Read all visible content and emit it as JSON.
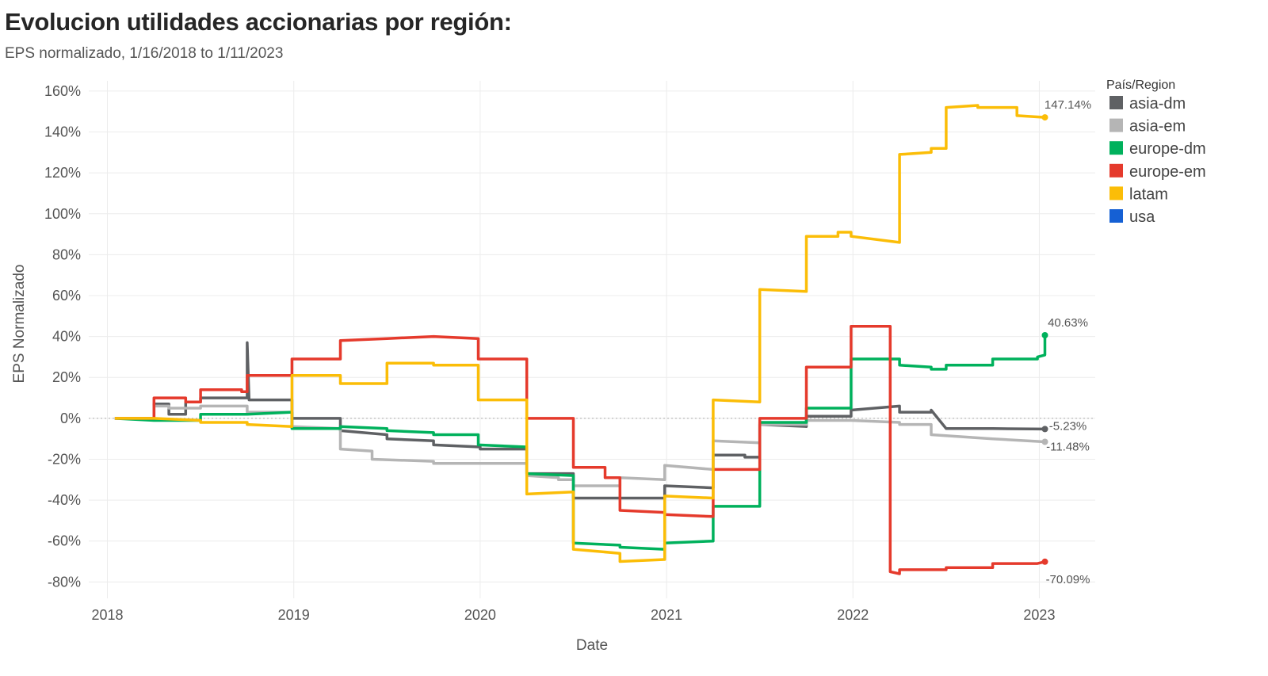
{
  "title": "Evolucion utilidades accionarias por región:",
  "subtitle": "EPS normalizado, 1/16/2018 to 1/11/2023",
  "chart_data": {
    "type": "line",
    "xlabel": "Date",
    "ylabel": "EPS Normalizado",
    "xlim": [
      2017.9,
      2023.3
    ],
    "ylim": [
      -88,
      165
    ],
    "x_ticks": [
      2018,
      2019,
      2020,
      2021,
      2022,
      2023
    ],
    "x_tick_labels": [
      "2018",
      "2019",
      "2020",
      "2021",
      "2022",
      "2023"
    ],
    "y_ticks": [
      -80,
      -60,
      -40,
      -20,
      0,
      20,
      40,
      60,
      80,
      100,
      120,
      140,
      160
    ],
    "y_tick_labels": [
      "-80%",
      "-60%",
      "-40%",
      "-20%",
      "0%",
      "20%",
      "40%",
      "60%",
      "80%",
      "100%",
      "120%",
      "140%",
      "160%"
    ],
    "grid": true,
    "zero_line": "dotted",
    "legend": {
      "title": "País/Region",
      "position": "right"
    },
    "series": [
      {
        "name": "asia-dm",
        "color": "#5f6164",
        "end_label": "-5.23%",
        "end_value": -5.23,
        "points": [
          [
            2018.04,
            0
          ],
          [
            2018.25,
            0
          ],
          [
            2018.25,
            7
          ],
          [
            2018.33,
            7
          ],
          [
            2018.33,
            2
          ],
          [
            2018.42,
            2
          ],
          [
            2018.42,
            8
          ],
          [
            2018.5,
            8
          ],
          [
            2018.5,
            10
          ],
          [
            2018.75,
            10
          ],
          [
            2018.75,
            37
          ],
          [
            2018.76,
            9
          ],
          [
            2018.99,
            9
          ],
          [
            2018.99,
            0
          ],
          [
            2019.25,
            0
          ],
          [
            2019.25,
            -6
          ],
          [
            2019.5,
            -8
          ],
          [
            2019.5,
            -10
          ],
          [
            2019.75,
            -11
          ],
          [
            2019.75,
            -13
          ],
          [
            2020.0,
            -14
          ],
          [
            2020.0,
            -15
          ],
          [
            2020.25,
            -15
          ],
          [
            2020.25,
            -27
          ],
          [
            2020.5,
            -27
          ],
          [
            2020.5,
            -39
          ],
          [
            2020.75,
            -39
          ],
          [
            2020.75,
            -39
          ],
          [
            2020.99,
            -39
          ],
          [
            2020.99,
            -33
          ],
          [
            2021.25,
            -34
          ],
          [
            2021.25,
            -18
          ],
          [
            2021.42,
            -18
          ],
          [
            2021.42,
            -19
          ],
          [
            2021.5,
            -19
          ],
          [
            2021.5,
            -3
          ],
          [
            2021.75,
            -4
          ],
          [
            2021.75,
            1
          ],
          [
            2021.99,
            1
          ],
          [
            2021.99,
            4
          ],
          [
            2022.25,
            6
          ],
          [
            2022.25,
            3
          ],
          [
            2022.42,
            3
          ],
          [
            2022.42,
            4
          ],
          [
            2022.5,
            -5
          ],
          [
            2022.75,
            -5
          ],
          [
            2023.03,
            -5.23
          ]
        ]
      },
      {
        "name": "asia-em",
        "color": "#b5b5b5",
        "end_label": "-11.48%",
        "end_value": -11.48,
        "points": [
          [
            2018.04,
            0
          ],
          [
            2018.25,
            0
          ],
          [
            2018.25,
            6
          ],
          [
            2018.33,
            6
          ],
          [
            2018.33,
            5
          ],
          [
            2018.5,
            5
          ],
          [
            2018.5,
            6
          ],
          [
            2018.75,
            6
          ],
          [
            2018.75,
            3
          ],
          [
            2018.99,
            3
          ],
          [
            2018.99,
            -4
          ],
          [
            2019.25,
            -5
          ],
          [
            2019.25,
            -15
          ],
          [
            2019.42,
            -16
          ],
          [
            2019.42,
            -20
          ],
          [
            2019.75,
            -21
          ],
          [
            2019.75,
            -22
          ],
          [
            2020.25,
            -22
          ],
          [
            2020.25,
            -28
          ],
          [
            2020.42,
            -29
          ],
          [
            2020.42,
            -30
          ],
          [
            2020.5,
            -30
          ],
          [
            2020.5,
            -33
          ],
          [
            2020.75,
            -33
          ],
          [
            2020.75,
            -29
          ],
          [
            2020.99,
            -30
          ],
          [
            2020.99,
            -23
          ],
          [
            2021.25,
            -25
          ],
          [
            2021.25,
            -11
          ],
          [
            2021.5,
            -12
          ],
          [
            2021.5,
            -3
          ],
          [
            2021.75,
            -3
          ],
          [
            2021.75,
            -1
          ],
          [
            2021.99,
            -1
          ],
          [
            2022.25,
            -2
          ],
          [
            2022.25,
            -3
          ],
          [
            2022.42,
            -3
          ],
          [
            2022.42,
            -8
          ],
          [
            2022.75,
            -10
          ],
          [
            2023.03,
            -11.48
          ]
        ]
      },
      {
        "name": "europe-dm",
        "color": "#00b15c",
        "end_label": "40.63%",
        "end_value": 40.63,
        "points": [
          [
            2018.04,
            0
          ],
          [
            2018.25,
            -1
          ],
          [
            2018.5,
            -1
          ],
          [
            2018.5,
            2
          ],
          [
            2018.75,
            2
          ],
          [
            2018.75,
            2
          ],
          [
            2018.99,
            3
          ],
          [
            2018.99,
            -5
          ],
          [
            2019.25,
            -5
          ],
          [
            2019.25,
            -4
          ],
          [
            2019.5,
            -5
          ],
          [
            2019.5,
            -6
          ],
          [
            2019.75,
            -7
          ],
          [
            2019.75,
            -8
          ],
          [
            2019.99,
            -8
          ],
          [
            2019.99,
            -13
          ],
          [
            2020.25,
            -14
          ],
          [
            2020.25,
            -27
          ],
          [
            2020.5,
            -28
          ],
          [
            2020.5,
            -61
          ],
          [
            2020.75,
            -62
          ],
          [
            2020.75,
            -63
          ],
          [
            2020.99,
            -64
          ],
          [
            2020.99,
            -61
          ],
          [
            2021.25,
            -60
          ],
          [
            2021.25,
            -43
          ],
          [
            2021.5,
            -43
          ],
          [
            2021.5,
            -2
          ],
          [
            2021.75,
            -2
          ],
          [
            2021.75,
            5
          ],
          [
            2021.99,
            5
          ],
          [
            2021.99,
            29
          ],
          [
            2022.25,
            29
          ],
          [
            2022.25,
            26
          ],
          [
            2022.42,
            25
          ],
          [
            2022.42,
            24
          ],
          [
            2022.5,
            24
          ],
          [
            2022.5,
            26
          ],
          [
            2022.75,
            26
          ],
          [
            2022.75,
            29
          ],
          [
            2022.99,
            29
          ],
          [
            2022.99,
            30
          ],
          [
            2023.03,
            31
          ],
          [
            2023.03,
            40.63
          ]
        ]
      },
      {
        "name": "europe-em",
        "color": "#e53a2c",
        "end_label": "-70.09%",
        "end_value": -70.09,
        "points": [
          [
            2018.04,
            0
          ],
          [
            2018.25,
            0
          ],
          [
            2018.25,
            10
          ],
          [
            2018.42,
            10
          ],
          [
            2018.42,
            8
          ],
          [
            2018.5,
            8
          ],
          [
            2018.5,
            14
          ],
          [
            2018.72,
            14
          ],
          [
            2018.72,
            13
          ],
          [
            2018.75,
            13
          ],
          [
            2018.75,
            21
          ],
          [
            2018.99,
            21
          ],
          [
            2018.99,
            29
          ],
          [
            2019.25,
            29
          ],
          [
            2019.25,
            38
          ],
          [
            2019.5,
            39
          ],
          [
            2019.5,
            39
          ],
          [
            2019.75,
            40
          ],
          [
            2019.99,
            39
          ],
          [
            2019.99,
            29
          ],
          [
            2020.25,
            29
          ],
          [
            2020.25,
            0
          ],
          [
            2020.5,
            0
          ],
          [
            2020.5,
            -24
          ],
          [
            2020.67,
            -24
          ],
          [
            2020.67,
            -29
          ],
          [
            2020.75,
            -29
          ],
          [
            2020.75,
            -45
          ],
          [
            2020.99,
            -46
          ],
          [
            2020.99,
            -47
          ],
          [
            2021.25,
            -48
          ],
          [
            2021.25,
            -25
          ],
          [
            2021.42,
            -25
          ],
          [
            2021.5,
            -25
          ],
          [
            2021.5,
            0
          ],
          [
            2021.75,
            0
          ],
          [
            2021.75,
            25
          ],
          [
            2021.99,
            25
          ],
          [
            2021.99,
            45
          ],
          [
            2022.2,
            45
          ],
          [
            2022.2,
            -75
          ],
          [
            2022.25,
            -76
          ],
          [
            2022.25,
            -74
          ],
          [
            2022.5,
            -74
          ],
          [
            2022.5,
            -73
          ],
          [
            2022.75,
            -73
          ],
          [
            2022.75,
            -71
          ],
          [
            2022.99,
            -71
          ],
          [
            2023.03,
            -70.09
          ]
        ]
      },
      {
        "name": "latam",
        "color": "#fbbd07",
        "end_label": "147.14%",
        "end_value": 147.14,
        "points": [
          [
            2018.04,
            0
          ],
          [
            2018.25,
            0
          ],
          [
            2018.25,
            0
          ],
          [
            2018.5,
            -1
          ],
          [
            2018.5,
            -2
          ],
          [
            2018.75,
            -2
          ],
          [
            2018.75,
            -3
          ],
          [
            2018.99,
            -4
          ],
          [
            2018.99,
            21
          ],
          [
            2019.25,
            21
          ],
          [
            2019.25,
            17
          ],
          [
            2019.5,
            17
          ],
          [
            2019.5,
            27
          ],
          [
            2019.75,
            27
          ],
          [
            2019.75,
            26
          ],
          [
            2019.99,
            26
          ],
          [
            2019.99,
            9
          ],
          [
            2020.25,
            9
          ],
          [
            2020.25,
            -37
          ],
          [
            2020.5,
            -36
          ],
          [
            2020.5,
            -64
          ],
          [
            2020.75,
            -66
          ],
          [
            2020.75,
            -70
          ],
          [
            2020.99,
            -69
          ],
          [
            2020.99,
            -38
          ],
          [
            2021.25,
            -39
          ],
          [
            2021.25,
            9
          ],
          [
            2021.5,
            8
          ],
          [
            2021.5,
            63
          ],
          [
            2021.75,
            62
          ],
          [
            2021.75,
            89
          ],
          [
            2021.92,
            89
          ],
          [
            2021.92,
            91
          ],
          [
            2021.99,
            91
          ],
          [
            2021.99,
            89
          ],
          [
            2022.25,
            86
          ],
          [
            2022.25,
            129
          ],
          [
            2022.42,
            130
          ],
          [
            2022.42,
            132
          ],
          [
            2022.5,
            132
          ],
          [
            2022.5,
            152
          ],
          [
            2022.67,
            153
          ],
          [
            2022.67,
            152
          ],
          [
            2022.88,
            152
          ],
          [
            2022.88,
            148
          ],
          [
            2023.03,
            147.14
          ]
        ]
      },
      {
        "name": "usa",
        "color": "#1560d4",
        "points": []
      }
    ]
  }
}
